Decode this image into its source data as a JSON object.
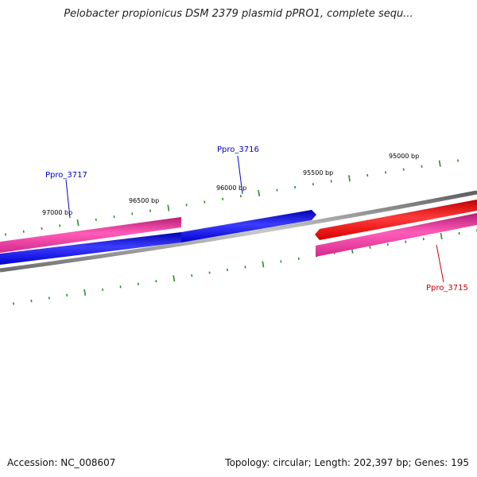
{
  "title": "Pelobacter propionicus DSM 2379 plasmid pPRO1, complete sequ...",
  "footer": {
    "accession": "Accession: NC_008607",
    "summary": "Topology: circular; Length: 202,397 bp; Genes: 195"
  },
  "colors": {
    "backbone": "#8a8a8a",
    "tick": "#2e8b2e",
    "forward_gene": "#e8389a",
    "reverse_gene": "#0000ee",
    "highlight_gene": "#ee0000",
    "label_blue": "#0000cc",
    "label_red": "#cc0000"
  },
  "ticks": [
    "97000 bp",
    "96500 bp",
    "96000 bp",
    "95500 bp",
    "95000 bp"
  ],
  "genes": [
    {
      "name": "Ppro_3717",
      "label_color": "#0000cc"
    },
    {
      "name": "Ppro_3716",
      "label_color": "#0000cc"
    },
    {
      "name": "Ppro_3715",
      "label_color": "#cc0000"
    }
  ]
}
